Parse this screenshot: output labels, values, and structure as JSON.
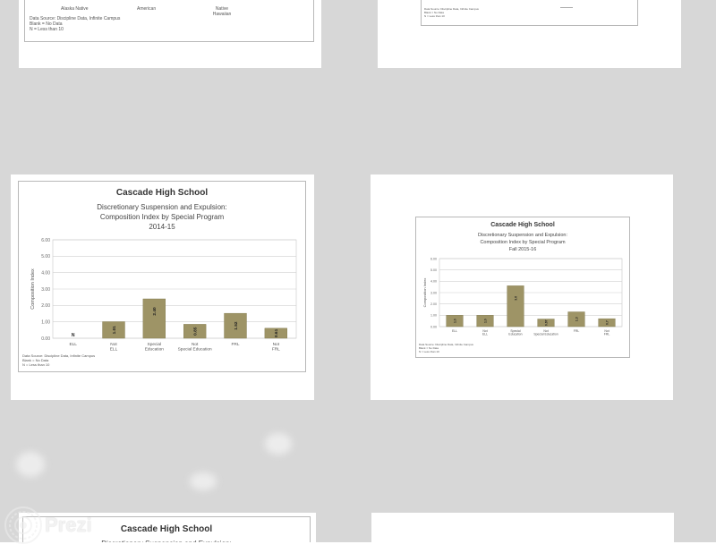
{
  "top_left_slide": {
    "categories": [
      "Alaska Native",
      "American",
      "Native Hawaiian"
    ],
    "source_line1": "Data Source: Discipline Data, Infinite Campus",
    "source_line2": "Blank = No Data",
    "source_line3": "N = Less than 10"
  },
  "top_right_slide": {
    "note_line1": "Data Source: Discipline Data, Infinite Campus",
    "note_line2": "Blank = No Data",
    "note_line3": "N = Less than 10"
  },
  "slide_2014": {
    "school": "Cascade High School",
    "title_line1": "Discretionary Suspension and Expulsion:",
    "title_line2": "Composition Index by Special Program",
    "title_line3": "2014-15",
    "source_line1": "Data Source: Discipline Data, Infinite Campus",
    "source_line2": "Blank = No Data",
    "source_line3": "N = Less than 10",
    "chart_data": {
      "type": "bar",
      "categories": [
        "ELL",
        "Not ELL",
        "Special Education",
        "Not Special Education",
        "FRL",
        "Not FRL"
      ],
      "values": [
        null,
        1.01,
        2.4,
        0.85,
        1.52,
        0.61
      ],
      "bar_labels": [
        "N",
        "1.01",
        "2.40",
        "0.85",
        "1.52",
        "0.61"
      ],
      "ylabel": "Composition Index",
      "ylim": [
        0,
        6
      ],
      "yticks": [
        "0.00",
        "1.00",
        "2.00",
        "3.00",
        "4.00",
        "5.00",
        "6.00"
      ],
      "bar_color": "#9e9466"
    }
  },
  "slide_2015": {
    "school": "Cascade High School",
    "title_line1": "Discretionary Suspension and Expulsion:",
    "title_line2": "Composition Index by Special Program",
    "title_line3": "Fall 2015-16",
    "source_line1": "Data Source: Discipline Data, Infinite Campus",
    "source_line2": "Blank = No Data",
    "source_line3": "N = Less than 10",
    "chart_data": {
      "type": "bar",
      "categories": [
        "ELL",
        "Not ELL",
        "Special Education",
        "Not Special Education",
        "FRL",
        "Not FRL"
      ],
      "values": [
        1.0,
        1.0,
        3.6,
        0.67,
        1.3,
        0.7
      ],
      "bar_labels": [
        "1.0",
        "1.0",
        "3.6",
        "0.67",
        "1.3",
        "0.7"
      ],
      "ylabel": "Composition Index",
      "ylim": [
        0,
        6
      ],
      "yticks": [
        "0.00",
        "1.00",
        "2.00",
        "3.00",
        "4.00",
        "5.00",
        "6.00"
      ],
      "bar_color": "#9e9466"
    }
  },
  "slide_bottom_left": {
    "school": "Cascade High School",
    "title_line1": "Discretionary Suspension and Expulsion:"
  },
  "watermark": {
    "brand": "Prezi"
  }
}
